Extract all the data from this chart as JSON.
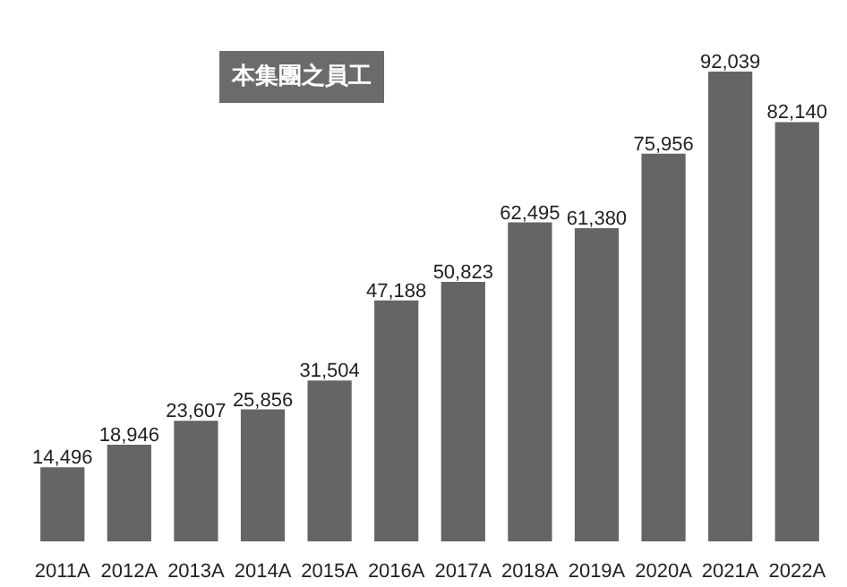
{
  "chart_data": {
    "type": "bar",
    "title": "本集團之員工",
    "categories": [
      "2011A",
      "2012A",
      "2013A",
      "2014A",
      "2015A",
      "2016A",
      "2017A",
      "2018A",
      "2019A",
      "2020A",
      "2021A",
      "2022A"
    ],
    "values": [
      14496,
      18946,
      23607,
      25856,
      31504,
      47188,
      50823,
      62495,
      61380,
      75956,
      92039,
      82140
    ],
    "value_labels": [
      "14,496",
      "18,946",
      "23,607",
      "25,856",
      "31,504",
      "47,188",
      "50,823",
      "62,495",
      "61,380",
      "75,956",
      "92,039",
      "82,140"
    ],
    "color": "#656565",
    "grid": false
  }
}
